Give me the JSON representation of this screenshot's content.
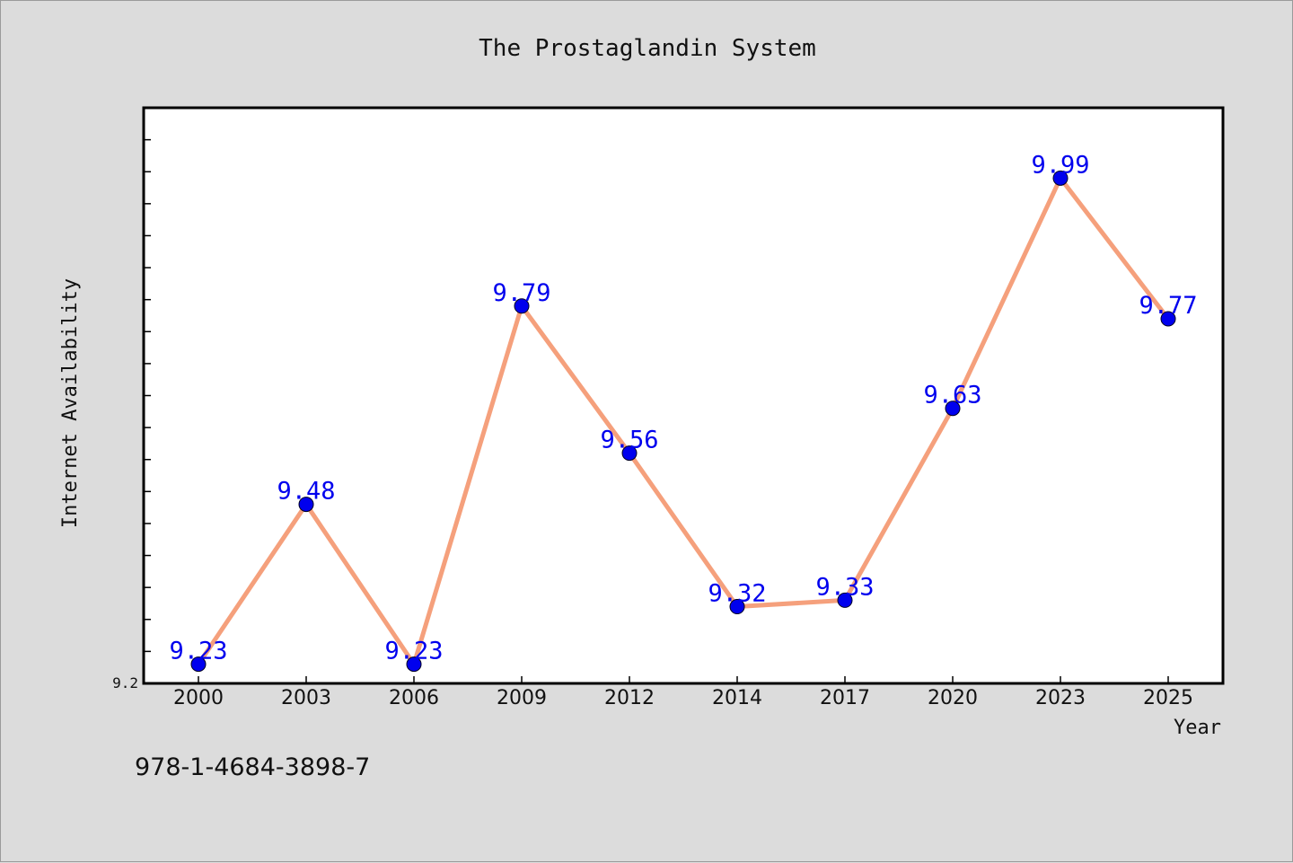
{
  "chart_data": {
    "type": "line",
    "title": "The Prostaglandin System",
    "xlabel": "Year",
    "ylabel": "Internet Availability",
    "categories": [
      "2000",
      "2003",
      "2006",
      "2009",
      "2012",
      "2014",
      "2017",
      "2020",
      "2023",
      "2025"
    ],
    "series": [
      {
        "values": [
          9.23,
          9.48,
          9.23,
          9.79,
          9.56,
          9.32,
          9.33,
          9.63,
          9.99,
          9.77
        ]
      }
    ],
    "ylim": [
      9.2,
      10.1
    ],
    "yticks_labeled": [
      "9.2"
    ],
    "y_minor_tick_step": 0.05,
    "grid": false,
    "line_color": "#f5a07c",
    "marker_color": "#0000ee",
    "label_color": "#0000ee"
  },
  "footnote": "978-1-4684-3898-7"
}
